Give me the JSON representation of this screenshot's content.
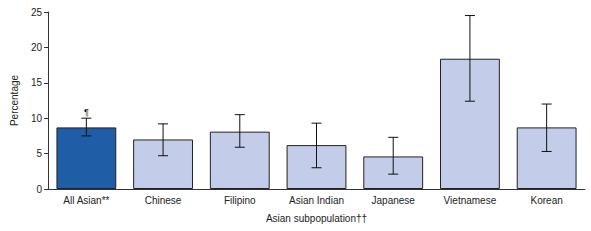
{
  "chart_data": {
    "type": "bar",
    "x_label": "Asian subpopulation††",
    "y_label": "Percentage",
    "categories": [
      "All Asian**",
      "Chinese",
      "Filipino",
      "Asian Indian",
      "Japanese",
      "Vietnamese",
      "Korean"
    ],
    "values": [
      8.7,
      7.0,
      8.1,
      6.2,
      4.6,
      18.4,
      8.7
    ],
    "ci_lower": [
      7.5,
      4.7,
      5.9,
      3.0,
      2.1,
      12.4,
      5.3
    ],
    "ci_upper": [
      10.0,
      9.2,
      10.5,
      9.3,
      7.3,
      24.5,
      12.0
    ],
    "colors": [
      "#1f5ea6",
      "#c3cde9",
      "#c3cde9",
      "#c3cde9",
      "#c3cde9",
      "#c3cde9",
      "#c3cde9"
    ],
    "annotations": [
      {
        "category": "All Asian**",
        "text": "¶"
      }
    ],
    "ylim": [
      0,
      25
    ],
    "yticks": [
      0,
      5,
      10,
      15,
      20,
      25
    ],
    "grid": false
  }
}
